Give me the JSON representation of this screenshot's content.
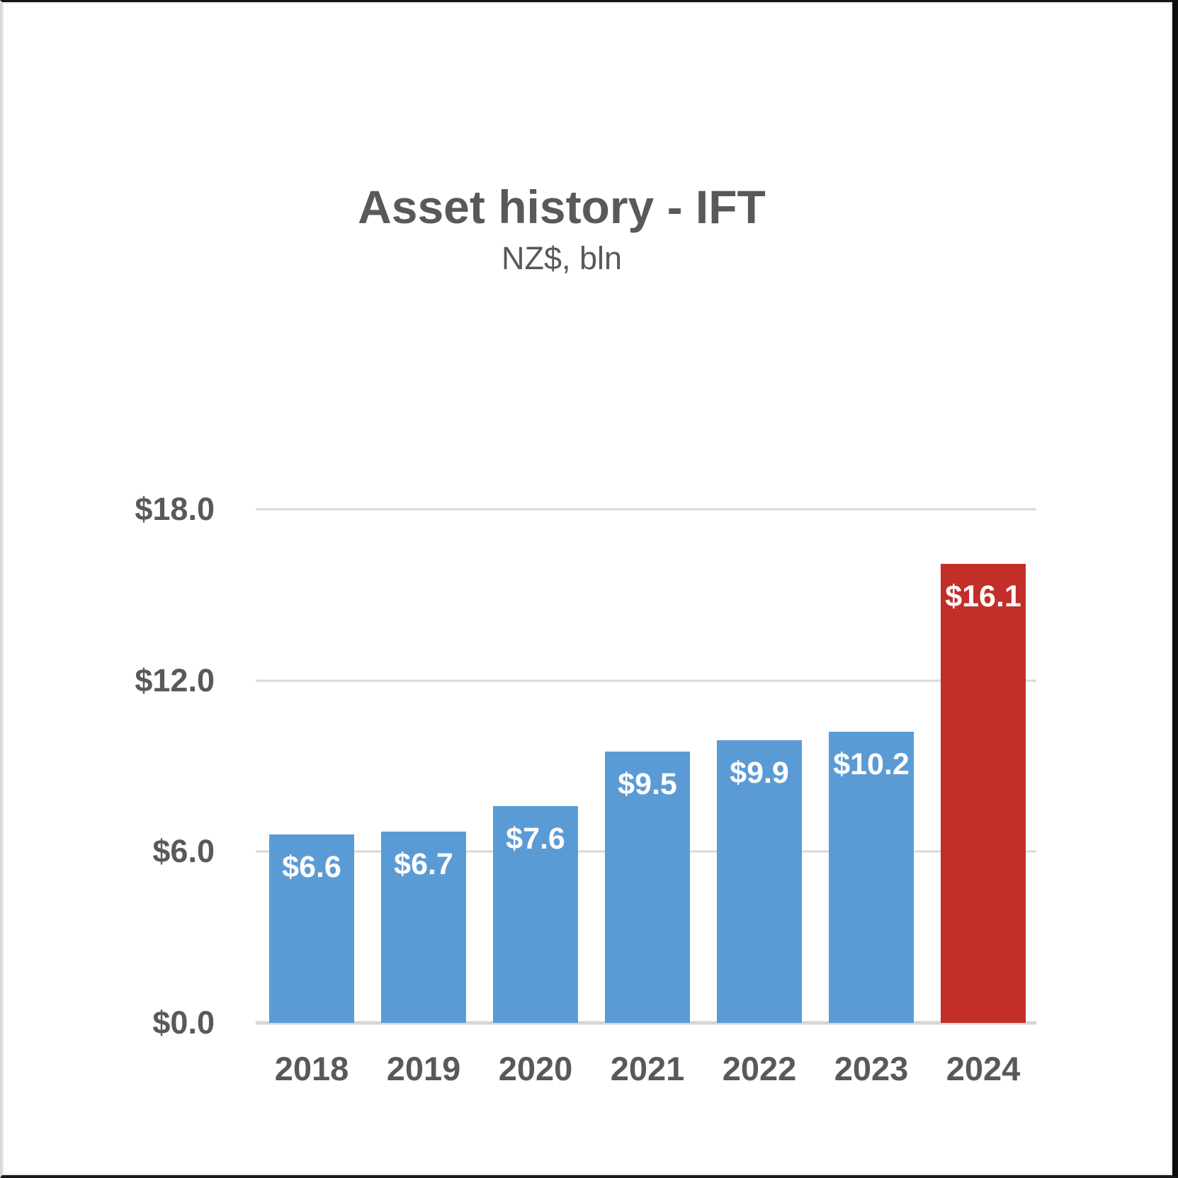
{
  "chart_data": {
    "type": "bar",
    "title": "Asset history - IFT",
    "subtitle": "NZ$, bln",
    "categories": [
      "2018",
      "2019",
      "2020",
      "2021",
      "2022",
      "2023",
      "2024"
    ],
    "values": [
      6.6,
      6.7,
      7.6,
      9.5,
      9.9,
      10.2,
      16.1
    ],
    "bar_labels": [
      "$6.6",
      "$6.7",
      "$7.6",
      "$9.5",
      "$9.9",
      "$10.2",
      "$16.1"
    ],
    "bar_colors": [
      "#5B9BD5",
      "#5B9BD5",
      "#5B9BD5",
      "#5B9BD5",
      "#5B9BD5",
      "#5B9BD5",
      "#C22E28"
    ],
    "xlabel": "",
    "ylabel": "",
    "ylim": [
      0,
      18
    ],
    "yticks": [
      {
        "value": 18,
        "label": "$18.0"
      },
      {
        "value": 12,
        "label": "$12.0"
      },
      {
        "value": 6,
        "label": "$6.0"
      },
      {
        "value": 0,
        "label": "$0.0"
      }
    ],
    "grid": "horizontal",
    "legend": "none",
    "colors": {
      "series_blue": "#5B9BD5",
      "series_red": "#C22E28",
      "text_gray": "#595959",
      "gridline": "#D9D9D9",
      "bar_label_text": "#FFFFFF",
      "background": "#FFFFFF"
    }
  }
}
